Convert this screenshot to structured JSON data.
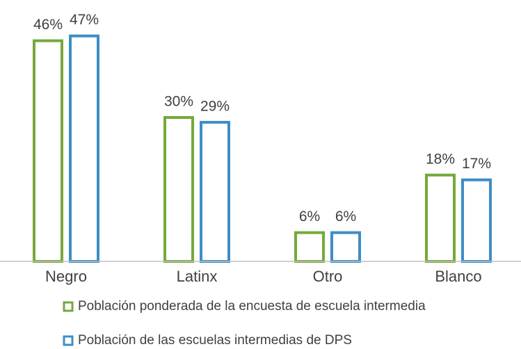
{
  "chart_data": {
    "type": "bar",
    "categories": [
      "Negro",
      "Latinx",
      "Otro",
      "Blanco"
    ],
    "series": [
      {
        "name": "Población ponderada de la encuesta de escuela intermedia",
        "color": "#76a83b",
        "values": [
          46,
          30,
          6,
          18
        ],
        "value_labels": [
          "46%",
          "30%",
          "6%",
          "18%"
        ]
      },
      {
        "name": "Población de las escuelas intermedias de DPS",
        "color": "#3f8dc5",
        "values": [
          47,
          29,
          6,
          17
        ],
        "value_labels": [
          "47%",
          "29%",
          "6%",
          "17%"
        ]
      }
    ],
    "ylim": [
      0,
      50
    ]
  }
}
